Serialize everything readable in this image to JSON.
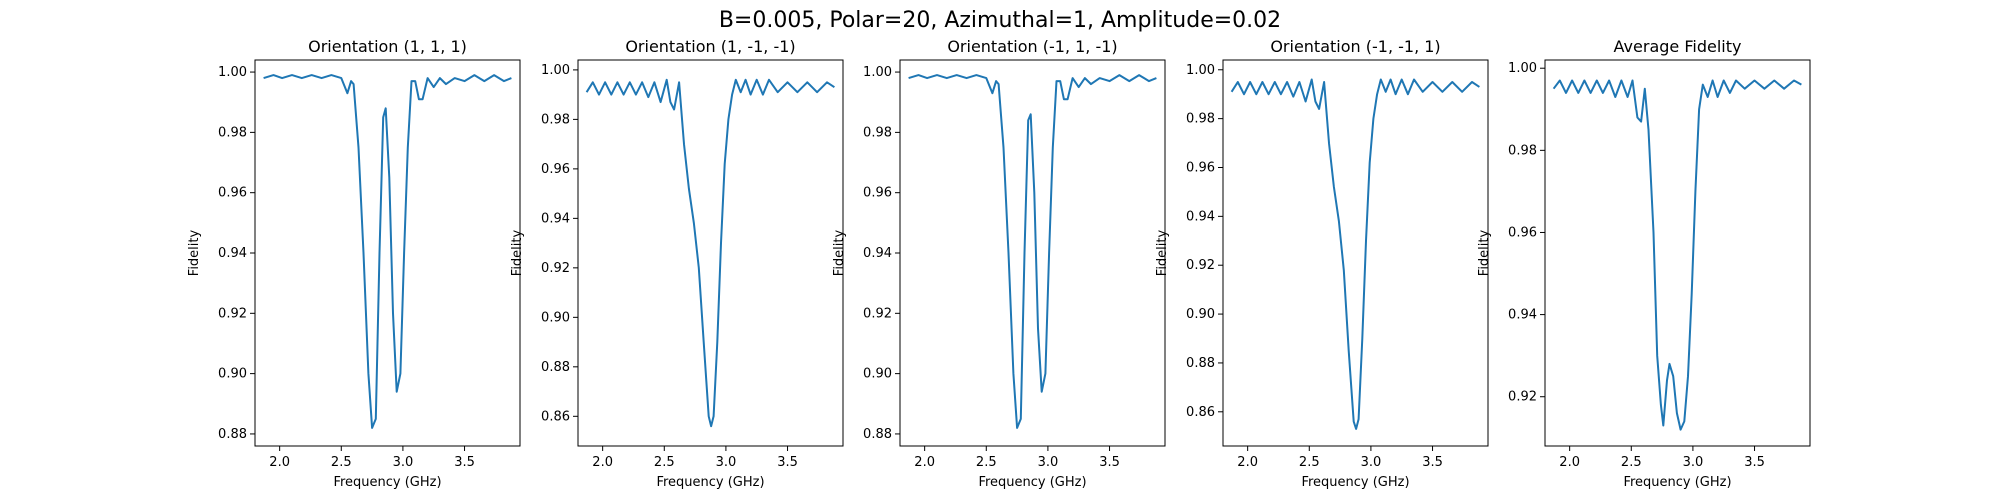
{
  "figure": {
    "suptitle": "B=0.005, Polar=20, Azimuthal=1, Amplitude=0.02"
  },
  "chart_data": [
    {
      "type": "line",
      "title": "Orientation (1, 1, 1)",
      "xlabel": "Frequency (GHz)",
      "ylabel": "Fidelity",
      "xlim": [
        1.8,
        3.95
      ],
      "ylim": [
        0.876,
        1.004
      ],
      "xticks": [
        "2.0",
        "2.5",
        "3.0",
        "3.5"
      ],
      "yticks": [
        "0.88",
        "0.90",
        "0.92",
        "0.94",
        "0.96",
        "0.98",
        "1.00"
      ],
      "line_color": "#1f77b4",
      "points": [
        [
          1.87,
          0.998
        ],
        [
          1.95,
          0.999
        ],
        [
          2.02,
          0.998
        ],
        [
          2.1,
          0.999
        ],
        [
          2.18,
          0.998
        ],
        [
          2.26,
          0.999
        ],
        [
          2.34,
          0.998
        ],
        [
          2.42,
          0.999
        ],
        [
          2.5,
          0.998
        ],
        [
          2.55,
          0.993
        ],
        [
          2.58,
          0.997
        ],
        [
          2.6,
          0.996
        ],
        [
          2.64,
          0.975
        ],
        [
          2.68,
          0.94
        ],
        [
          2.72,
          0.9
        ],
        [
          2.75,
          0.882
        ],
        [
          2.78,
          0.885
        ],
        [
          2.81,
          0.94
        ],
        [
          2.84,
          0.985
        ],
        [
          2.86,
          0.988
        ],
        [
          2.89,
          0.965
        ],
        [
          2.92,
          0.92
        ],
        [
          2.95,
          0.894
        ],
        [
          2.98,
          0.9
        ],
        [
          3.01,
          0.94
        ],
        [
          3.04,
          0.975
        ],
        [
          3.07,
          0.997
        ],
        [
          3.1,
          0.997
        ],
        [
          3.13,
          0.991
        ],
        [
          3.16,
          0.991
        ],
        [
          3.2,
          0.998
        ],
        [
          3.25,
          0.995
        ],
        [
          3.3,
          0.998
        ],
        [
          3.35,
          0.996
        ],
        [
          3.42,
          0.998
        ],
        [
          3.5,
          0.997
        ],
        [
          3.58,
          0.999
        ],
        [
          3.66,
          0.997
        ],
        [
          3.74,
          0.999
        ],
        [
          3.82,
          0.997
        ],
        [
          3.88,
          0.998
        ]
      ]
    },
    {
      "type": "line",
      "title": "Orientation (1, -1, -1)",
      "xlabel": "Frequency (GHz)",
      "ylabel": "Fidelity",
      "xlim": [
        1.8,
        3.95
      ],
      "ylim": [
        0.848,
        1.004
      ],
      "xticks": [
        "2.0",
        "2.5",
        "3.0",
        "3.5"
      ],
      "yticks": [
        "0.86",
        "0.88",
        "0.90",
        "0.92",
        "0.94",
        "0.96",
        "0.98",
        "1.00"
      ],
      "line_color": "#1f77b4",
      "points": [
        [
          1.87,
          0.991
        ],
        [
          1.92,
          0.995
        ],
        [
          1.97,
          0.99
        ],
        [
          2.02,
          0.995
        ],
        [
          2.07,
          0.99
        ],
        [
          2.12,
          0.995
        ],
        [
          2.17,
          0.99
        ],
        [
          2.22,
          0.995
        ],
        [
          2.27,
          0.99
        ],
        [
          2.32,
          0.995
        ],
        [
          2.37,
          0.989
        ],
        [
          2.42,
          0.995
        ],
        [
          2.47,
          0.987
        ],
        [
          2.52,
          0.996
        ],
        [
          2.55,
          0.987
        ],
        [
          2.58,
          0.984
        ],
        [
          2.62,
          0.995
        ],
        [
          2.66,
          0.97
        ],
        [
          2.7,
          0.952
        ],
        [
          2.74,
          0.938
        ],
        [
          2.78,
          0.92
        ],
        [
          2.82,
          0.89
        ],
        [
          2.86,
          0.86
        ],
        [
          2.88,
          0.856
        ],
        [
          2.9,
          0.86
        ],
        [
          2.93,
          0.89
        ],
        [
          2.96,
          0.93
        ],
        [
          2.99,
          0.962
        ],
        [
          3.02,
          0.98
        ],
        [
          3.05,
          0.99
        ],
        [
          3.08,
          0.996
        ],
        [
          3.12,
          0.991
        ],
        [
          3.16,
          0.996
        ],
        [
          3.2,
          0.99
        ],
        [
          3.25,
          0.996
        ],
        [
          3.3,
          0.99
        ],
        [
          3.35,
          0.996
        ],
        [
          3.42,
          0.991
        ],
        [
          3.5,
          0.995
        ],
        [
          3.58,
          0.991
        ],
        [
          3.66,
          0.995
        ],
        [
          3.74,
          0.991
        ],
        [
          3.82,
          0.995
        ],
        [
          3.88,
          0.993
        ]
      ]
    },
    {
      "type": "line",
      "title": "Orientation (-1, 1, -1)",
      "xlabel": "Frequency (GHz)",
      "ylabel": "Fidelity",
      "xlim": [
        1.8,
        3.95
      ],
      "ylim": [
        0.876,
        1.004
      ],
      "xticks": [
        "2.0",
        "2.5",
        "3.0",
        "3.5"
      ],
      "yticks": [
        "0.88",
        "0.90",
        "0.92",
        "0.94",
        "0.96",
        "0.98",
        "1.00"
      ],
      "line_color": "#1f77b4",
      "points": [
        [
          1.87,
          0.998
        ],
        [
          1.95,
          0.999
        ],
        [
          2.02,
          0.998
        ],
        [
          2.1,
          0.999
        ],
        [
          2.18,
          0.998
        ],
        [
          2.26,
          0.999
        ],
        [
          2.34,
          0.998
        ],
        [
          2.42,
          0.999
        ],
        [
          2.5,
          0.998
        ],
        [
          2.55,
          0.993
        ],
        [
          2.58,
          0.997
        ],
        [
          2.6,
          0.996
        ],
        [
          2.64,
          0.975
        ],
        [
          2.68,
          0.94
        ],
        [
          2.72,
          0.9
        ],
        [
          2.75,
          0.882
        ],
        [
          2.78,
          0.885
        ],
        [
          2.81,
          0.94
        ],
        [
          2.84,
          0.984
        ],
        [
          2.86,
          0.986
        ],
        [
          2.89,
          0.96
        ],
        [
          2.92,
          0.915
        ],
        [
          2.95,
          0.894
        ],
        [
          2.98,
          0.9
        ],
        [
          3.01,
          0.94
        ],
        [
          3.04,
          0.975
        ],
        [
          3.07,
          0.997
        ],
        [
          3.1,
          0.997
        ],
        [
          3.13,
          0.991
        ],
        [
          3.16,
          0.991
        ],
        [
          3.2,
          0.998
        ],
        [
          3.25,
          0.995
        ],
        [
          3.3,
          0.998
        ],
        [
          3.35,
          0.996
        ],
        [
          3.42,
          0.998
        ],
        [
          3.5,
          0.997
        ],
        [
          3.58,
          0.999
        ],
        [
          3.66,
          0.997
        ],
        [
          3.74,
          0.999
        ],
        [
          3.82,
          0.997
        ],
        [
          3.88,
          0.998
        ]
      ]
    },
    {
      "type": "line",
      "title": "Orientation (-1, -1, 1)",
      "xlabel": "Frequency (GHz)",
      "ylabel": "Fidelity",
      "xlim": [
        1.8,
        3.95
      ],
      "ylim": [
        0.846,
        1.004
      ],
      "xticks": [
        "2.0",
        "2.5",
        "3.0",
        "3.5"
      ],
      "yticks": [
        "0.86",
        "0.88",
        "0.90",
        "0.92",
        "0.94",
        "0.96",
        "0.98",
        "1.00"
      ],
      "line_color": "#1f77b4",
      "points": [
        [
          1.87,
          0.991
        ],
        [
          1.92,
          0.995
        ],
        [
          1.97,
          0.99
        ],
        [
          2.02,
          0.995
        ],
        [
          2.07,
          0.99
        ],
        [
          2.12,
          0.995
        ],
        [
          2.17,
          0.99
        ],
        [
          2.22,
          0.995
        ],
        [
          2.27,
          0.99
        ],
        [
          2.32,
          0.995
        ],
        [
          2.37,
          0.989
        ],
        [
          2.42,
          0.995
        ],
        [
          2.47,
          0.987
        ],
        [
          2.52,
          0.996
        ],
        [
          2.55,
          0.987
        ],
        [
          2.58,
          0.984
        ],
        [
          2.62,
          0.995
        ],
        [
          2.66,
          0.97
        ],
        [
          2.7,
          0.952
        ],
        [
          2.74,
          0.938
        ],
        [
          2.78,
          0.918
        ],
        [
          2.82,
          0.885
        ],
        [
          2.86,
          0.856
        ],
        [
          2.88,
          0.853
        ],
        [
          2.9,
          0.857
        ],
        [
          2.93,
          0.89
        ],
        [
          2.96,
          0.93
        ],
        [
          2.99,
          0.962
        ],
        [
          3.02,
          0.98
        ],
        [
          3.05,
          0.99
        ],
        [
          3.08,
          0.996
        ],
        [
          3.12,
          0.991
        ],
        [
          3.16,
          0.996
        ],
        [
          3.2,
          0.99
        ],
        [
          3.25,
          0.996
        ],
        [
          3.3,
          0.99
        ],
        [
          3.35,
          0.996
        ],
        [
          3.42,
          0.991
        ],
        [
          3.5,
          0.995
        ],
        [
          3.58,
          0.991
        ],
        [
          3.66,
          0.995
        ],
        [
          3.74,
          0.991
        ],
        [
          3.82,
          0.995
        ],
        [
          3.88,
          0.993
        ]
      ]
    },
    {
      "type": "line",
      "title": "Average Fidelity",
      "xlabel": "Frequency (GHz)",
      "ylabel": "Fidelity",
      "xlim": [
        1.8,
        3.95
      ],
      "ylim": [
        0.908,
        1.002
      ],
      "xticks": [
        "2.0",
        "2.5",
        "3.0",
        "3.5"
      ],
      "yticks": [
        "0.92",
        "0.94",
        "0.96",
        "0.98",
        "1.00"
      ],
      "line_color": "#1f77b4",
      "points": [
        [
          1.87,
          0.995
        ],
        [
          1.92,
          0.997
        ],
        [
          1.97,
          0.994
        ],
        [
          2.02,
          0.997
        ],
        [
          2.07,
          0.994
        ],
        [
          2.12,
          0.997
        ],
        [
          2.17,
          0.994
        ],
        [
          2.22,
          0.997
        ],
        [
          2.27,
          0.994
        ],
        [
          2.32,
          0.997
        ],
        [
          2.37,
          0.993
        ],
        [
          2.42,
          0.997
        ],
        [
          2.47,
          0.993
        ],
        [
          2.51,
          0.997
        ],
        [
          2.55,
          0.988
        ],
        [
          2.58,
          0.987
        ],
        [
          2.61,
          0.995
        ],
        [
          2.64,
          0.985
        ],
        [
          2.68,
          0.96
        ],
        [
          2.71,
          0.93
        ],
        [
          2.74,
          0.918
        ],
        [
          2.76,
          0.913
        ],
        [
          2.79,
          0.924
        ],
        [
          2.81,
          0.928
        ],
        [
          2.84,
          0.925
        ],
        [
          2.87,
          0.916
        ],
        [
          2.9,
          0.912
        ],
        [
          2.93,
          0.914
        ],
        [
          2.96,
          0.925
        ],
        [
          2.99,
          0.945
        ],
        [
          3.02,
          0.97
        ],
        [
          3.05,
          0.99
        ],
        [
          3.08,
          0.996
        ],
        [
          3.12,
          0.993
        ],
        [
          3.16,
          0.997
        ],
        [
          3.2,
          0.993
        ],
        [
          3.25,
          0.997
        ],
        [
          3.3,
          0.994
        ],
        [
          3.35,
          0.997
        ],
        [
          3.42,
          0.995
        ],
        [
          3.5,
          0.997
        ],
        [
          3.58,
          0.995
        ],
        [
          3.66,
          0.997
        ],
        [
          3.74,
          0.995
        ],
        [
          3.82,
          0.997
        ],
        [
          3.88,
          0.996
        ]
      ]
    }
  ]
}
